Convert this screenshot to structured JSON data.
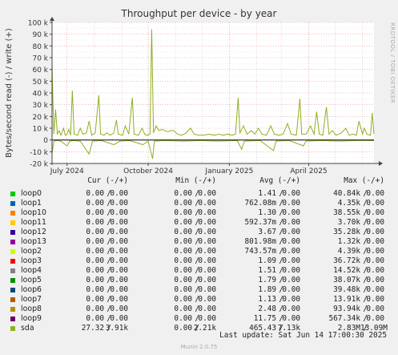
{
  "chart_data": {
    "type": "line",
    "title": "Throughput per device - by year",
    "ylabel": "Bytes/second read (-) / write (+)",
    "ylim": [
      -20000,
      100000
    ],
    "yticks": [
      {
        "value": 100000,
        "label": "100 k"
      },
      {
        "value": 90000,
        "label": "90 k"
      },
      {
        "value": 80000,
        "label": "80 k"
      },
      {
        "value": 70000,
        "label": "70 k"
      },
      {
        "value": 60000,
        "label": "60 k"
      },
      {
        "value": 50000,
        "label": "50 k"
      },
      {
        "value": 40000,
        "label": "40 k"
      },
      {
        "value": 30000,
        "label": "30 k"
      },
      {
        "value": 20000,
        "label": "20 k"
      },
      {
        "value": 10000,
        "label": "10 k"
      },
      {
        "value": 0,
        "label": "0"
      },
      {
        "value": -10000,
        "label": "-10 k"
      },
      {
        "value": -20000,
        "label": "-20 k"
      }
    ],
    "xlim": [
      "2024-06-14",
      "2025-06-14"
    ],
    "xticks": [
      {
        "date": "2024-07-01",
        "label": "July 2024"
      },
      {
        "date": "2024-10-01",
        "label": "October 2024"
      },
      {
        "date": "2025-01-01",
        "label": "January 2025"
      },
      {
        "date": "2025-04-01",
        "label": "April 2025"
      }
    ],
    "grid": true,
    "series": [
      {
        "name": "sda",
        "color": "#8fb020",
        "write": [
          [
            "2024-06-14",
            64000
          ],
          [
            "2024-06-16",
            5000
          ],
          [
            "2024-06-18",
            26000
          ],
          [
            "2024-06-20",
            5000
          ],
          [
            "2024-06-22",
            8000
          ],
          [
            "2024-06-24",
            4000
          ],
          [
            "2024-06-27",
            10000
          ],
          [
            "2024-06-29",
            4000
          ],
          [
            "2024-07-01",
            5000
          ],
          [
            "2024-07-03",
            9000
          ],
          [
            "2024-07-05",
            4000
          ],
          [
            "2024-07-07",
            42000
          ],
          [
            "2024-07-09",
            5000
          ],
          [
            "2024-07-13",
            4000
          ],
          [
            "2024-07-16",
            10000
          ],
          [
            "2024-07-19",
            5000
          ],
          [
            "2024-07-23",
            6000
          ],
          [
            "2024-07-26",
            16000
          ],
          [
            "2024-07-29",
            4000
          ],
          [
            "2024-08-02",
            6000
          ],
          [
            "2024-08-06",
            38000
          ],
          [
            "2024-08-08",
            5000
          ],
          [
            "2024-08-12",
            4000
          ],
          [
            "2024-08-15",
            6000
          ],
          [
            "2024-08-19",
            4000
          ],
          [
            "2024-08-23",
            6000
          ],
          [
            "2024-08-26",
            17000
          ],
          [
            "2024-08-28",
            5000
          ],
          [
            "2024-09-02",
            4000
          ],
          [
            "2024-09-05",
            12000
          ],
          [
            "2024-09-09",
            5000
          ],
          [
            "2024-09-13",
            36000
          ],
          [
            "2024-09-15",
            5000
          ],
          [
            "2024-09-20",
            4000
          ],
          [
            "2024-09-24",
            10000
          ],
          [
            "2024-09-27",
            5000
          ],
          [
            "2024-09-30",
            4000
          ],
          [
            "2024-10-03",
            5000
          ],
          [
            "2024-10-05",
            94000
          ],
          [
            "2024-10-07",
            6000
          ],
          [
            "2024-10-10",
            12000
          ],
          [
            "2024-10-13",
            8000
          ],
          [
            "2024-10-17",
            9000
          ],
          [
            "2024-10-20",
            8000
          ],
          [
            "2024-10-23",
            7000
          ],
          [
            "2024-10-27",
            8000
          ],
          [
            "2024-10-30",
            8000
          ],
          [
            "2024-11-03",
            5000
          ],
          [
            "2024-11-08",
            4000
          ],
          [
            "2024-11-13",
            6000
          ],
          [
            "2024-11-18",
            10000
          ],
          [
            "2024-11-22",
            5000
          ],
          [
            "2024-11-27",
            4000
          ],
          [
            "2024-12-03",
            4000
          ],
          [
            "2024-12-09",
            5000
          ],
          [
            "2024-12-15",
            4000
          ],
          [
            "2024-12-20",
            5000
          ],
          [
            "2024-12-25",
            4000
          ],
          [
            "2024-12-30",
            5000
          ],
          [
            "2025-01-04",
            4000
          ],
          [
            "2025-01-08",
            5000
          ],
          [
            "2025-01-11",
            36000
          ],
          [
            "2025-01-13",
            6000
          ],
          [
            "2025-01-17",
            12000
          ],
          [
            "2025-01-21",
            5000
          ],
          [
            "2025-01-26",
            8000
          ],
          [
            "2025-01-30",
            5000
          ],
          [
            "2025-02-03",
            10000
          ],
          [
            "2025-02-07",
            5000
          ],
          [
            "2025-02-12",
            4000
          ],
          [
            "2025-02-17",
            12000
          ],
          [
            "2025-02-21",
            5000
          ],
          [
            "2025-02-26",
            4000
          ],
          [
            "2025-03-03",
            5000
          ],
          [
            "2025-03-08",
            14000
          ],
          [
            "2025-03-12",
            5000
          ],
          [
            "2025-03-18",
            4000
          ],
          [
            "2025-03-22",
            35000
          ],
          [
            "2025-03-24",
            5000
          ],
          [
            "2025-03-29",
            5000
          ],
          [
            "2025-04-03",
            12000
          ],
          [
            "2025-04-07",
            5000
          ],
          [
            "2025-04-10",
            24000
          ],
          [
            "2025-04-13",
            5000
          ],
          [
            "2025-04-17",
            4000
          ],
          [
            "2025-04-21",
            28000
          ],
          [
            "2025-04-24",
            5000
          ],
          [
            "2025-04-28",
            8000
          ],
          [
            "2025-05-02",
            4000
          ],
          [
            "2025-05-08",
            6000
          ],
          [
            "2025-05-13",
            10000
          ],
          [
            "2025-05-17",
            4000
          ],
          [
            "2025-05-21",
            5000
          ],
          [
            "2025-05-25",
            4000
          ],
          [
            "2025-05-28",
            16000
          ],
          [
            "2025-06-01",
            5000
          ],
          [
            "2025-06-03",
            10000
          ],
          [
            "2025-06-06",
            5000
          ],
          [
            "2025-06-10",
            4000
          ],
          [
            "2025-06-12",
            23000
          ],
          [
            "2025-06-14",
            5000
          ]
        ],
        "read": [
          [
            "2024-06-14",
            -12000
          ],
          [
            "2024-06-16",
            -1000
          ],
          [
            "2024-06-20",
            -500
          ],
          [
            "2024-06-24",
            -1000
          ],
          [
            "2024-07-01",
            -5000
          ],
          [
            "2024-07-04",
            -1000
          ],
          [
            "2024-07-08",
            -500
          ],
          [
            "2024-07-16",
            -1000
          ],
          [
            "2024-07-26",
            -12000
          ],
          [
            "2024-07-30",
            -1000
          ],
          [
            "2024-08-09",
            -500
          ],
          [
            "2024-08-23",
            -4000
          ],
          [
            "2024-08-30",
            -1000
          ],
          [
            "2024-09-10",
            -500
          ],
          [
            "2024-09-25",
            -4000
          ],
          [
            "2024-10-01",
            -1000
          ],
          [
            "2024-10-06",
            -16000
          ],
          [
            "2024-10-08",
            -1000
          ],
          [
            "2024-10-20",
            -500
          ],
          [
            "2024-11-10",
            -1000
          ],
          [
            "2024-11-30",
            -500
          ],
          [
            "2024-12-20",
            -1000
          ],
          [
            "2025-01-10",
            -500
          ],
          [
            "2025-01-15",
            -8000
          ],
          [
            "2025-01-18",
            -1000
          ],
          [
            "2025-02-05",
            -500
          ],
          [
            "2025-02-20",
            -9000
          ],
          [
            "2025-02-23",
            -1000
          ],
          [
            "2025-03-10",
            -500
          ],
          [
            "2025-03-26",
            -5000
          ],
          [
            "2025-03-29",
            -1000
          ],
          [
            "2025-04-15",
            -500
          ],
          [
            "2025-05-05",
            -1000
          ],
          [
            "2025-05-25",
            -500
          ],
          [
            "2025-06-14",
            -500
          ]
        ]
      }
    ]
  },
  "side_label": "RRDTOOL / TOBI OETIKER",
  "legend": {
    "headers": {
      "cur": "Cur (-/+)",
      "min": "Min (-/+)",
      "avg": "Avg (-/+)",
      "max": "Max (-/+)"
    },
    "rows": [
      {
        "name": "loop0",
        "color": "#00cc00",
        "cur_r": "0.00",
        "cur_w": "0.00",
        "min_r": "0.00",
        "min_w": "0.00",
        "avg_r": "1.41",
        "avg_w": "0.00",
        "max_r": "40.84k",
        "max_w": "0.00"
      },
      {
        "name": "loop1",
        "color": "#0066b3",
        "cur_r": "0.00",
        "cur_w": "0.00",
        "min_r": "0.00",
        "min_w": "0.00",
        "avg_r": "762.08m",
        "avg_w": "0.00",
        "max_r": "4.35k",
        "max_w": "0.00"
      },
      {
        "name": "loop10",
        "color": "#ff8000",
        "cur_r": "0.00",
        "cur_w": "0.00",
        "min_r": "0.00",
        "min_w": "0.00",
        "avg_r": "1.30",
        "avg_w": "0.00",
        "max_r": "38.55k",
        "max_w": "0.00"
      },
      {
        "name": "loop11",
        "color": "#ffcc00",
        "cur_r": "0.00",
        "cur_w": "0.00",
        "min_r": "0.00",
        "min_w": "0.00",
        "avg_r": "592.37m",
        "avg_w": "0.00",
        "max_r": "3.70k",
        "max_w": "0.00"
      },
      {
        "name": "loop12",
        "color": "#330099",
        "cur_r": "0.00",
        "cur_w": "0.00",
        "min_r": "0.00",
        "min_w": "0.00",
        "avg_r": "3.67",
        "avg_w": "0.00",
        "max_r": "35.28k",
        "max_w": "0.00"
      },
      {
        "name": "loop13",
        "color": "#990099",
        "cur_r": "0.00",
        "cur_w": "0.00",
        "min_r": "0.00",
        "min_w": "0.00",
        "avg_r": "801.98m",
        "avg_w": "0.00",
        "max_r": "1.32k",
        "max_w": "0.00"
      },
      {
        "name": "loop2",
        "color": "#ccff00",
        "cur_r": "0.00",
        "cur_w": "0.00",
        "min_r": "0.00",
        "min_w": "0.00",
        "avg_r": "743.57m",
        "avg_w": "0.00",
        "max_r": "4.39k",
        "max_w": "0.00"
      },
      {
        "name": "loop3",
        "color": "#ff0000",
        "cur_r": "0.00",
        "cur_w": "0.00",
        "min_r": "0.00",
        "min_w": "0.00",
        "avg_r": "1.09",
        "avg_w": "0.00",
        "max_r": "36.72k",
        "max_w": "0.00"
      },
      {
        "name": "loop4",
        "color": "#808080",
        "cur_r": "0.00",
        "cur_w": "0.00",
        "min_r": "0.00",
        "min_w": "0.00",
        "avg_r": "1.51",
        "avg_w": "0.00",
        "max_r": "14.52k",
        "max_w": "0.00"
      },
      {
        "name": "loop5",
        "color": "#008f00",
        "cur_r": "0.00",
        "cur_w": "0.00",
        "min_r": "0.00",
        "min_w": "0.00",
        "avg_r": "1.79",
        "avg_w": "0.00",
        "max_r": "38.07k",
        "max_w": "0.00"
      },
      {
        "name": "loop6",
        "color": "#00487d",
        "cur_r": "0.00",
        "cur_w": "0.00",
        "min_r": "0.00",
        "min_w": "0.00",
        "avg_r": "1.89",
        "avg_w": "0.00",
        "max_r": "39.48k",
        "max_w": "0.00"
      },
      {
        "name": "loop7",
        "color": "#b35a00",
        "cur_r": "0.00",
        "cur_w": "0.00",
        "min_r": "0.00",
        "min_w": "0.00",
        "avg_r": "1.13",
        "avg_w": "0.00",
        "max_r": "13.91k",
        "max_w": "0.00"
      },
      {
        "name": "loop8",
        "color": "#b38f00",
        "cur_r": "0.00",
        "cur_w": "0.00",
        "min_r": "0.00",
        "min_w": "0.00",
        "avg_r": "2.48",
        "avg_w": "0.00",
        "max_r": "93.94k",
        "max_w": "0.00"
      },
      {
        "name": "loop9",
        "color": "#6b006b",
        "cur_r": "0.00",
        "cur_w": "0.00",
        "min_r": "0.00",
        "min_w": "0.00",
        "avg_r": "11.75",
        "avg_w": "0.00",
        "max_r": "567.34k",
        "max_w": "0.00"
      },
      {
        "name": "sda",
        "color": "#8fb020",
        "cur_r": "27.32",
        "cur_w": "3.91k",
        "min_r": "0.00",
        "min_w": "2.21k",
        "avg_r": "465.43",
        "avg_w": "7.13k",
        "max_r": "2.83M",
        "max_w": "13.09M"
      }
    ]
  },
  "last_update": "Last update: Sat Jun 14 17:00:30 2025",
  "footer": "Munin 2.0.75"
}
